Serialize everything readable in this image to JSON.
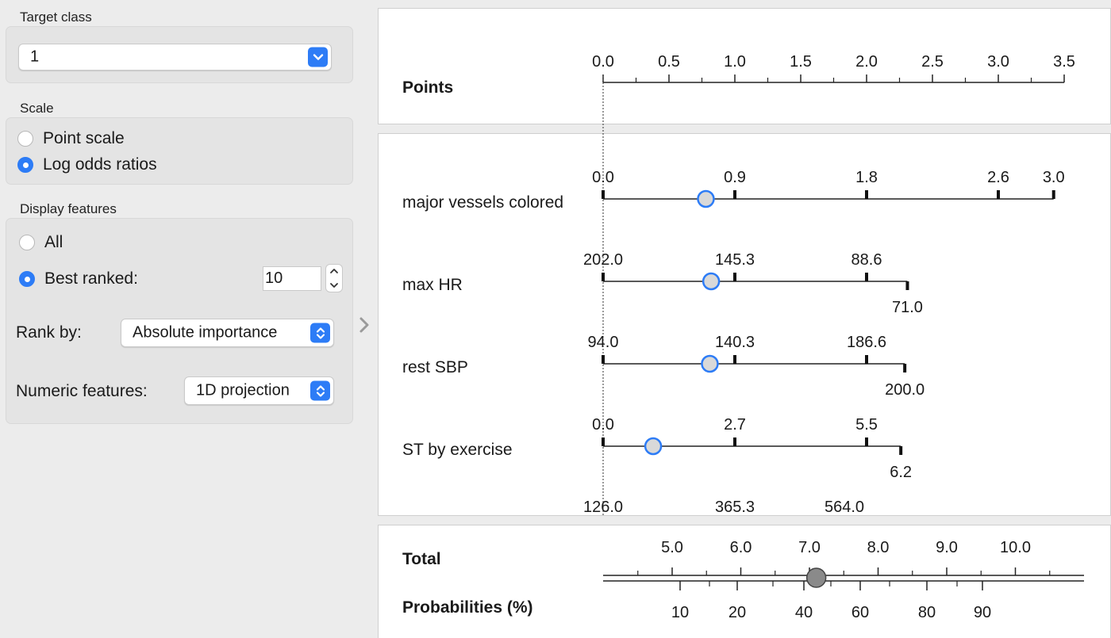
{
  "target_class": {
    "label": "Target class",
    "value": "1"
  },
  "scale": {
    "label": "Scale",
    "options": [
      "Point scale",
      "Log odds ratios"
    ],
    "selected": 1
  },
  "display_features": {
    "label": "Display features",
    "option_all": "All",
    "option_best": "Best ranked:",
    "best_selected": true,
    "best_count": "10",
    "rank_by_label": "Rank by:",
    "rank_by_value": "Absolute importance",
    "numeric_label": "Numeric features:",
    "numeric_value": "1D projection"
  },
  "icons": {
    "dropdown": "chevron-down-icon",
    "updown": "chevron-updown-icon",
    "collapse": "chevron-right-icon"
  },
  "colors": {
    "accent": "#2d7cf6",
    "marker_fill": "#d9d9d9",
    "total_marker": "#8a8a8a"
  },
  "nomogram": {
    "points": {
      "label": "Points",
      "min": 0,
      "max": 3.5,
      "major": [
        "0.0",
        "0.5",
        "1.0",
        "1.5",
        "2.0",
        "2.5",
        "3.0",
        "3.5"
      ],
      "minor_step": 0.25
    },
    "features": [
      {
        "name": "major vessels colored",
        "top_ticks": [
          {
            "label": "0.0",
            "pts": 0
          },
          {
            "label": "0.9",
            "pts": 1.0
          },
          {
            "label": "1.8",
            "pts": 2.0
          },
          {
            "label": "2.6",
            "pts": 3.0
          },
          {
            "label": "3.0",
            "pts": 3.42
          }
        ],
        "bottom_ticks": [],
        "end_pts": 3.42,
        "marker_pts": 0.78
      },
      {
        "name": "max HR",
        "top_ticks": [
          {
            "label": "202.0",
            "pts": 0
          },
          {
            "label": "145.3",
            "pts": 1.0
          },
          {
            "label": "88.6",
            "pts": 2.0
          }
        ],
        "bottom_ticks": [
          {
            "label": "71.0",
            "pts": 2.31
          }
        ],
        "end_pts": 2.31,
        "marker_pts": 0.82
      },
      {
        "name": "rest SBP",
        "top_ticks": [
          {
            "label": "94.0",
            "pts": 0
          },
          {
            "label": "140.3",
            "pts": 1.0
          },
          {
            "label": "186.6",
            "pts": 2.0
          }
        ],
        "bottom_ticks": [
          {
            "label": "200.0",
            "pts": 2.29
          }
        ],
        "end_pts": 2.29,
        "marker_pts": 0.81
      },
      {
        "name": "ST by exercise",
        "top_ticks": [
          {
            "label": "0.0",
            "pts": 0
          },
          {
            "label": "2.7",
            "pts": 1.0
          },
          {
            "label": "5.5",
            "pts": 2.0
          }
        ],
        "bottom_ticks": [
          {
            "label": "6.2",
            "pts": 2.26
          }
        ],
        "end_pts": 2.26,
        "marker_pts": 0.38
      }
    ],
    "cut_labels": [
      "126.0",
      "365.3",
      "564.0"
    ],
    "total": {
      "label": "Total",
      "major": [
        "5.0",
        "6.0",
        "7.0",
        "8.0",
        "9.0",
        "10.0"
      ],
      "marker_value": 7.1
    },
    "probabilities": {
      "label": "Probabilities (%)",
      "labels": [
        "10",
        "20",
        "40",
        "60",
        "80",
        "90"
      ]
    }
  }
}
